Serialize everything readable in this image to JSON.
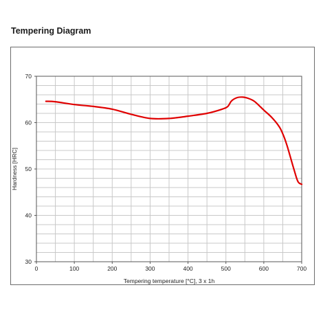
{
  "heading": "Tempering Diagram",
  "chart_data": {
    "type": "line",
    "title": "",
    "xlabel": "Tempering temperature [°C], 3 x 1h",
    "ylabel": "Hardness [HRC]",
    "xlim": [
      0,
      700
    ],
    "ylim": [
      30,
      70
    ],
    "xticks": [
      0,
      100,
      200,
      300,
      400,
      500,
      600,
      700
    ],
    "yticks": [
      30,
      40,
      50,
      60,
      70
    ],
    "grid": true,
    "line_color": "#e00000",
    "series": [
      {
        "x": [
          25,
          50,
          100,
          150,
          200,
          250,
          300,
          350,
          400,
          450,
          490,
          505,
          515,
          530,
          545,
          560,
          575,
          590,
          600,
          620,
          640,
          650,
          660,
          670,
          680,
          690,
          700
        ],
        "y": [
          64.6,
          64.5,
          63.9,
          63.5,
          62.9,
          61.8,
          60.9,
          60.9,
          61.4,
          62.0,
          62.9,
          63.5,
          64.7,
          65.4,
          65.5,
          65.2,
          64.6,
          63.5,
          62.7,
          61.2,
          59.2,
          57.6,
          55.4,
          52.6,
          49.8,
          47.3,
          46.7
        ]
      }
    ]
  }
}
